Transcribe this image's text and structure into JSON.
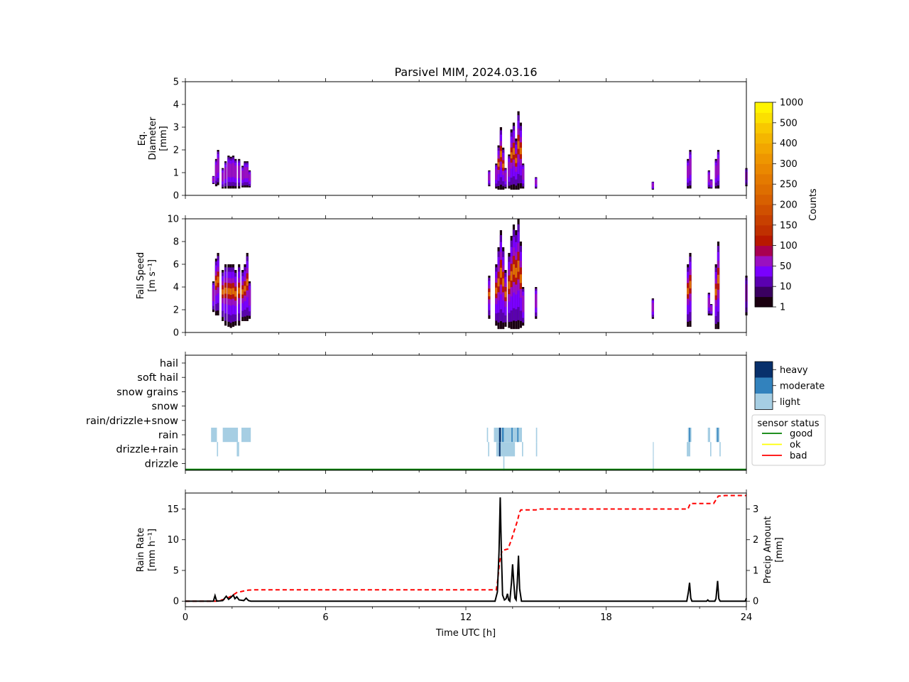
{
  "title": "Parsivel MIM, 2024.03.16",
  "colors": {
    "counts_colorbar": [
      "#1a0010",
      "#3a0060",
      "#5a00b0",
      "#7a00ff",
      "#9a10c0",
      "#a80050",
      "#b81800",
      "#c03000",
      "#c84000",
      "#d05000",
      "#d86000",
      "#de6e00",
      "#e47a00",
      "#ea8800",
      "#ee9600",
      "#f2a600",
      "#f4b600",
      "#f8c800",
      "#fbe000",
      "#fff400"
    ],
    "precip_classes": {
      "light": "#a6cee3",
      "moderate": "#3282bd",
      "heavy": "#08306b"
    },
    "sensor_status": {
      "good": "#008000",
      "ok": "#ffff00",
      "bad": "#ff0000"
    },
    "rain_rate_line": "#000000",
    "precip_amount_line": "#ff0000"
  },
  "chart_data": [
    {
      "type": "heatmap",
      "panel": "diameter",
      "ylabel_lines": [
        "Eq.",
        "Diameter",
        "[mm]"
      ],
      "xlim": [
        0,
        24
      ],
      "ylim": [
        0,
        5
      ],
      "yticks": [
        0,
        1,
        2,
        3,
        4,
        5
      ],
      "events": [
        {
          "t": 1.2,
          "bottom": 0.5,
          "top": 0.85
        },
        {
          "t": 1.32,
          "bottom": 0.4,
          "top": 1.6
        },
        {
          "t": 1.4,
          "bottom": 0.45,
          "top": 2.0
        },
        {
          "t": 1.6,
          "bottom": 0.3,
          "top": 1.2
        },
        {
          "t": 1.72,
          "bottom": 0.3,
          "top": 1.5
        },
        {
          "t": 1.85,
          "bottom": 0.3,
          "top": 1.75
        },
        {
          "t": 1.95,
          "bottom": 0.3,
          "top": 1.7
        },
        {
          "t": 2.05,
          "bottom": 0.3,
          "top": 1.75
        },
        {
          "t": 2.15,
          "bottom": 0.3,
          "top": 1.6
        },
        {
          "t": 2.3,
          "bottom": 0.3,
          "top": 1.6
        },
        {
          "t": 2.45,
          "bottom": 0.35,
          "top": 1.3
        },
        {
          "t": 2.55,
          "bottom": 0.35,
          "top": 1.5
        },
        {
          "t": 2.65,
          "bottom": 0.35,
          "top": 1.5
        },
        {
          "t": 2.75,
          "bottom": 0.35,
          "top": 1.1
        },
        {
          "t": 13.0,
          "bottom": 0.4,
          "top": 1.1
        },
        {
          "t": 13.3,
          "bottom": 0.3,
          "top": 1.4
        },
        {
          "t": 13.4,
          "bottom": 0.25,
          "top": 2.2
        },
        {
          "t": 13.5,
          "bottom": 0.25,
          "top": 3.0
        },
        {
          "t": 13.6,
          "bottom": 0.25,
          "top": 2.1
        },
        {
          "t": 13.7,
          "bottom": 0.3,
          "top": 1.2
        },
        {
          "t": 13.85,
          "bottom": 0.3,
          "top": 1.8
        },
        {
          "t": 13.95,
          "bottom": 0.25,
          "top": 2.9
        },
        {
          "t": 14.05,
          "bottom": 0.25,
          "top": 3.2
        },
        {
          "t": 14.15,
          "bottom": 0.25,
          "top": 2.5
        },
        {
          "t": 14.25,
          "bottom": 0.25,
          "top": 3.7
        },
        {
          "t": 14.35,
          "bottom": 0.3,
          "top": 3.2
        },
        {
          "t": 14.45,
          "bottom": 0.3,
          "top": 1.4
        },
        {
          "t": 15.0,
          "bottom": 0.3,
          "top": 0.8
        },
        {
          "t": 20.0,
          "bottom": 0.25,
          "top": 0.6
        },
        {
          "t": 21.5,
          "bottom": 0.3,
          "top": 1.6
        },
        {
          "t": 21.6,
          "bottom": 0.3,
          "top": 2.0
        },
        {
          "t": 22.4,
          "bottom": 0.3,
          "top": 1.1
        },
        {
          "t": 22.5,
          "bottom": 0.3,
          "top": 0.7
        },
        {
          "t": 22.7,
          "bottom": 0.3,
          "top": 1.6
        },
        {
          "t": 22.8,
          "bottom": 0.3,
          "top": 2.0
        },
        {
          "t": 24.0,
          "bottom": 0.4,
          "top": 1.2
        }
      ]
    },
    {
      "type": "heatmap",
      "panel": "fall_speed",
      "ylabel_lines": [
        "Fall Speed",
        "[m s⁻¹]"
      ],
      "xlim": [
        0,
        24
      ],
      "ylim": [
        0,
        10
      ],
      "yticks": [
        0,
        2,
        4,
        6,
        8,
        10
      ],
      "events": [
        {
          "t": 1.2,
          "bottom": 1.8,
          "top": 4.5
        },
        {
          "t": 1.32,
          "bottom": 1.5,
          "top": 6.5
        },
        {
          "t": 1.4,
          "bottom": 1.5,
          "top": 7.0
        },
        {
          "t": 1.6,
          "bottom": 1.0,
          "top": 5.5
        },
        {
          "t": 1.72,
          "bottom": 0.6,
          "top": 6.0
        },
        {
          "t": 1.85,
          "bottom": 0.5,
          "top": 6.0
        },
        {
          "t": 1.95,
          "bottom": 0.4,
          "top": 6.0
        },
        {
          "t": 2.05,
          "bottom": 0.5,
          "top": 6.0
        },
        {
          "t": 2.15,
          "bottom": 0.6,
          "top": 5.5
        },
        {
          "t": 2.3,
          "bottom": 0.6,
          "top": 6.0
        },
        {
          "t": 2.45,
          "bottom": 1.0,
          "top": 5.5
        },
        {
          "t": 2.55,
          "bottom": 1.0,
          "top": 6.0
        },
        {
          "t": 2.65,
          "bottom": 1.0,
          "top": 7.0
        },
        {
          "t": 2.75,
          "bottom": 1.2,
          "top": 4.5
        },
        {
          "t": 13.0,
          "bottom": 1.2,
          "top": 5.0
        },
        {
          "t": 13.3,
          "bottom": 0.6,
          "top": 6.0
        },
        {
          "t": 13.4,
          "bottom": 0.3,
          "top": 7.5
        },
        {
          "t": 13.5,
          "bottom": 0.3,
          "top": 9.0
        },
        {
          "t": 13.6,
          "bottom": 0.3,
          "top": 7.5
        },
        {
          "t": 13.7,
          "bottom": 0.5,
          "top": 5.5
        },
        {
          "t": 13.85,
          "bottom": 0.4,
          "top": 7.0
        },
        {
          "t": 13.95,
          "bottom": 0.3,
          "top": 8.5
        },
        {
          "t": 14.05,
          "bottom": 0.3,
          "top": 9.5
        },
        {
          "t": 14.15,
          "bottom": 0.3,
          "top": 9.0
        },
        {
          "t": 14.25,
          "bottom": 0.3,
          "top": 10.0
        },
        {
          "t": 14.35,
          "bottom": 0.4,
          "top": 8.0
        },
        {
          "t": 14.45,
          "bottom": 0.6,
          "top": 4.0
        },
        {
          "t": 15.0,
          "bottom": 1.2,
          "top": 4.0
        },
        {
          "t": 20.0,
          "bottom": 1.2,
          "top": 3.0
        },
        {
          "t": 21.5,
          "bottom": 0.5,
          "top": 6.0
        },
        {
          "t": 21.6,
          "bottom": 0.5,
          "top": 7.0
        },
        {
          "t": 22.4,
          "bottom": 1.5,
          "top": 3.5
        },
        {
          "t": 22.5,
          "bottom": 1.5,
          "top": 2.5
        },
        {
          "t": 22.7,
          "bottom": 0.3,
          "top": 6.0
        },
        {
          "t": 22.8,
          "bottom": 0.3,
          "top": 8.0
        },
        {
          "t": 24.0,
          "bottom": 1.5,
          "top": 5.0
        }
      ],
      "colorbar": {
        "label": "Counts",
        "tick_labels": [
          "1",
          "10",
          "50",
          "100",
          "150",
          "200",
          "250",
          "300",
          "400",
          "500",
          "1000"
        ]
      }
    },
    {
      "type": "heatmap",
      "panel": "precip_type",
      "categories": [
        "hail",
        "soft hail",
        "snow grains",
        "snow",
        "rain/drizzle+snow",
        "rain",
        "drizzle+rain",
        "drizzle"
      ],
      "xlim": [
        0,
        24
      ],
      "intensity_legend": [
        "heavy",
        "moderate",
        "light"
      ],
      "sensor_legend": {
        "title": "sensor status",
        "entries": [
          "good",
          "ok",
          "bad"
        ]
      },
      "cells": [
        {
          "category": "rain",
          "intensity": "light",
          "t0": 1.1,
          "t1": 1.35
        },
        {
          "category": "rain",
          "intensity": "light",
          "t0": 1.6,
          "t1": 2.25
        },
        {
          "category": "rain",
          "intensity": "light",
          "t0": 2.4,
          "t1": 2.8
        },
        {
          "category": "drizzle+rain",
          "intensity": "light",
          "t0": 1.35,
          "t1": 1.4
        },
        {
          "category": "drizzle+rain",
          "intensity": "light",
          "t0": 2.2,
          "t1": 2.3
        },
        {
          "category": "rain",
          "intensity": "light",
          "t0": 12.9,
          "t1": 12.95
        },
        {
          "category": "rain",
          "intensity": "light",
          "t0": 13.2,
          "t1": 14.4
        },
        {
          "category": "rain",
          "intensity": "heavy",
          "t0": 13.42,
          "t1": 13.5
        },
        {
          "category": "rain",
          "intensity": "moderate",
          "t0": 13.55,
          "t1": 13.62
        },
        {
          "category": "rain",
          "intensity": "moderate",
          "t0": 13.95,
          "t1": 14.0
        },
        {
          "category": "rain",
          "intensity": "moderate",
          "t0": 14.2,
          "t1": 14.25
        },
        {
          "category": "rain",
          "intensity": "light",
          "t0": 15.0,
          "t1": 15.05
        },
        {
          "category": "drizzle+rain",
          "intensity": "light",
          "t0": 12.95,
          "t1": 13.0
        },
        {
          "category": "drizzle+rain",
          "intensity": "light",
          "t0": 13.3,
          "t1": 14.1
        },
        {
          "category": "drizzle+rain",
          "intensity": "heavy",
          "t0": 13.42,
          "t1": 13.48
        },
        {
          "category": "drizzle+rain",
          "intensity": "light",
          "t0": 14.4,
          "t1": 14.45
        },
        {
          "category": "drizzle+rain",
          "intensity": "light",
          "t0": 15.0,
          "t1": 15.05
        },
        {
          "category": "drizzle",
          "intensity": "light",
          "t0": 13.6,
          "t1": 13.65
        },
        {
          "category": "drizzle+rain",
          "intensity": "light",
          "t0": 20.0,
          "t1": 20.03
        },
        {
          "category": "drizzle",
          "intensity": "light",
          "t0": 20.0,
          "t1": 20.03
        },
        {
          "category": "rain",
          "intensity": "light",
          "t0": 21.5,
          "t1": 21.65
        },
        {
          "category": "rain",
          "intensity": "moderate",
          "t0": 21.55,
          "t1": 21.6
        },
        {
          "category": "drizzle+rain",
          "intensity": "light",
          "t0": 21.45,
          "t1": 21.6
        },
        {
          "category": "rain",
          "intensity": "light",
          "t0": 22.35,
          "t1": 22.45
        },
        {
          "category": "rain",
          "intensity": "light",
          "t0": 22.7,
          "t1": 22.85
        },
        {
          "category": "rain",
          "intensity": "moderate",
          "t0": 22.75,
          "t1": 22.8
        },
        {
          "category": "drizzle+rain",
          "intensity": "light",
          "t0": 22.45,
          "t1": 22.5
        },
        {
          "category": "drizzle+rain",
          "intensity": "light",
          "t0": 22.85,
          "t1": 22.9
        }
      ],
      "sensor_status": "good"
    },
    {
      "type": "line",
      "panel": "rain",
      "xlabel": "Time UTC [h]",
      "xlim": [
        0,
        24
      ],
      "xticks": [
        0,
        6,
        12,
        18,
        24
      ],
      "ylabel_lines": [
        "Rain Rate",
        "[mm h⁻¹]"
      ],
      "ylim": [
        -0.9,
        17.6
      ],
      "yticks": [
        0,
        5,
        10,
        15
      ],
      "y2label_lines": [
        "Precip Amount",
        "[mm]"
      ],
      "y2lim": [
        -0.18,
        3.52
      ],
      "y2ticks": [
        0,
        1,
        2,
        3
      ],
      "series": [
        {
          "name": "Rain Rate",
          "axis": "left",
          "points": [
            [
              0,
              0
            ],
            [
              1.2,
              0
            ],
            [
              1.27,
              0.9
            ],
            [
              1.34,
              0
            ],
            [
              1.6,
              0.1
            ],
            [
              1.75,
              0.8
            ],
            [
              1.85,
              0.3
            ],
            [
              1.95,
              0.6
            ],
            [
              2.05,
              1.0
            ],
            [
              2.12,
              0.4
            ],
            [
              2.2,
              0.7
            ],
            [
              2.3,
              0.2
            ],
            [
              2.5,
              0.1
            ],
            [
              2.6,
              0.5
            ],
            [
              2.7,
              0.1
            ],
            [
              2.8,
              0
            ],
            [
              13.25,
              0
            ],
            [
              13.35,
              1.5
            ],
            [
              13.42,
              8.0
            ],
            [
              13.47,
              16.9
            ],
            [
              13.52,
              8.0
            ],
            [
              13.57,
              1.0
            ],
            [
              13.65,
              0.2
            ],
            [
              13.72,
              0.4
            ],
            [
              13.78,
              1.2
            ],
            [
              13.83,
              0.2
            ],
            [
              13.88,
              0
            ],
            [
              13.95,
              3.0
            ],
            [
              14.0,
              6.0
            ],
            [
              14.05,
              3.0
            ],
            [
              14.1,
              0.5
            ],
            [
              14.15,
              0.2
            ],
            [
              14.2,
              3.0
            ],
            [
              14.25,
              7.4
            ],
            [
              14.3,
              2.0
            ],
            [
              14.38,
              0
            ],
            [
              21.45,
              0
            ],
            [
              21.52,
              1.5
            ],
            [
              21.57,
              3.0
            ],
            [
              21.62,
              0.5
            ],
            [
              21.67,
              0
            ],
            [
              22.3,
              0
            ],
            [
              22.35,
              0.2
            ],
            [
              22.4,
              0
            ],
            [
              22.65,
              0
            ],
            [
              22.7,
              0.4
            ],
            [
              22.77,
              3.3
            ],
            [
              22.82,
              0.4
            ],
            [
              22.88,
              0
            ],
            [
              23.95,
              0
            ],
            [
              24,
              0.5
            ]
          ]
        },
        {
          "name": "Precip Amount",
          "axis": "right",
          "points": [
            [
              0,
              0
            ],
            [
              1.3,
              0
            ],
            [
              1.5,
              0.03
            ],
            [
              1.75,
              0.08
            ],
            [
              2.0,
              0.18
            ],
            [
              2.2,
              0.28
            ],
            [
              2.5,
              0.33
            ],
            [
              2.7,
              0.36
            ],
            [
              3.0,
              0.37
            ],
            [
              13.3,
              0.37
            ],
            [
              13.35,
              0.6
            ],
            [
              13.45,
              1.3
            ],
            [
              13.55,
              1.65
            ],
            [
              13.7,
              1.68
            ],
            [
              13.8,
              1.7
            ],
            [
              13.95,
              2.0
            ],
            [
              14.05,
              2.25
            ],
            [
              14.2,
              2.6
            ],
            [
              14.3,
              2.9
            ],
            [
              14.35,
              2.97
            ],
            [
              15.0,
              2.97
            ],
            [
              15.1,
              3.0
            ],
            [
              21.3,
              3.0
            ],
            [
              21.5,
              3.0
            ],
            [
              21.6,
              3.18
            ],
            [
              22.6,
              3.18
            ],
            [
              22.7,
              3.3
            ],
            [
              22.8,
              3.42
            ],
            [
              23.1,
              3.44
            ],
            [
              24,
              3.44
            ]
          ]
        }
      ]
    }
  ]
}
